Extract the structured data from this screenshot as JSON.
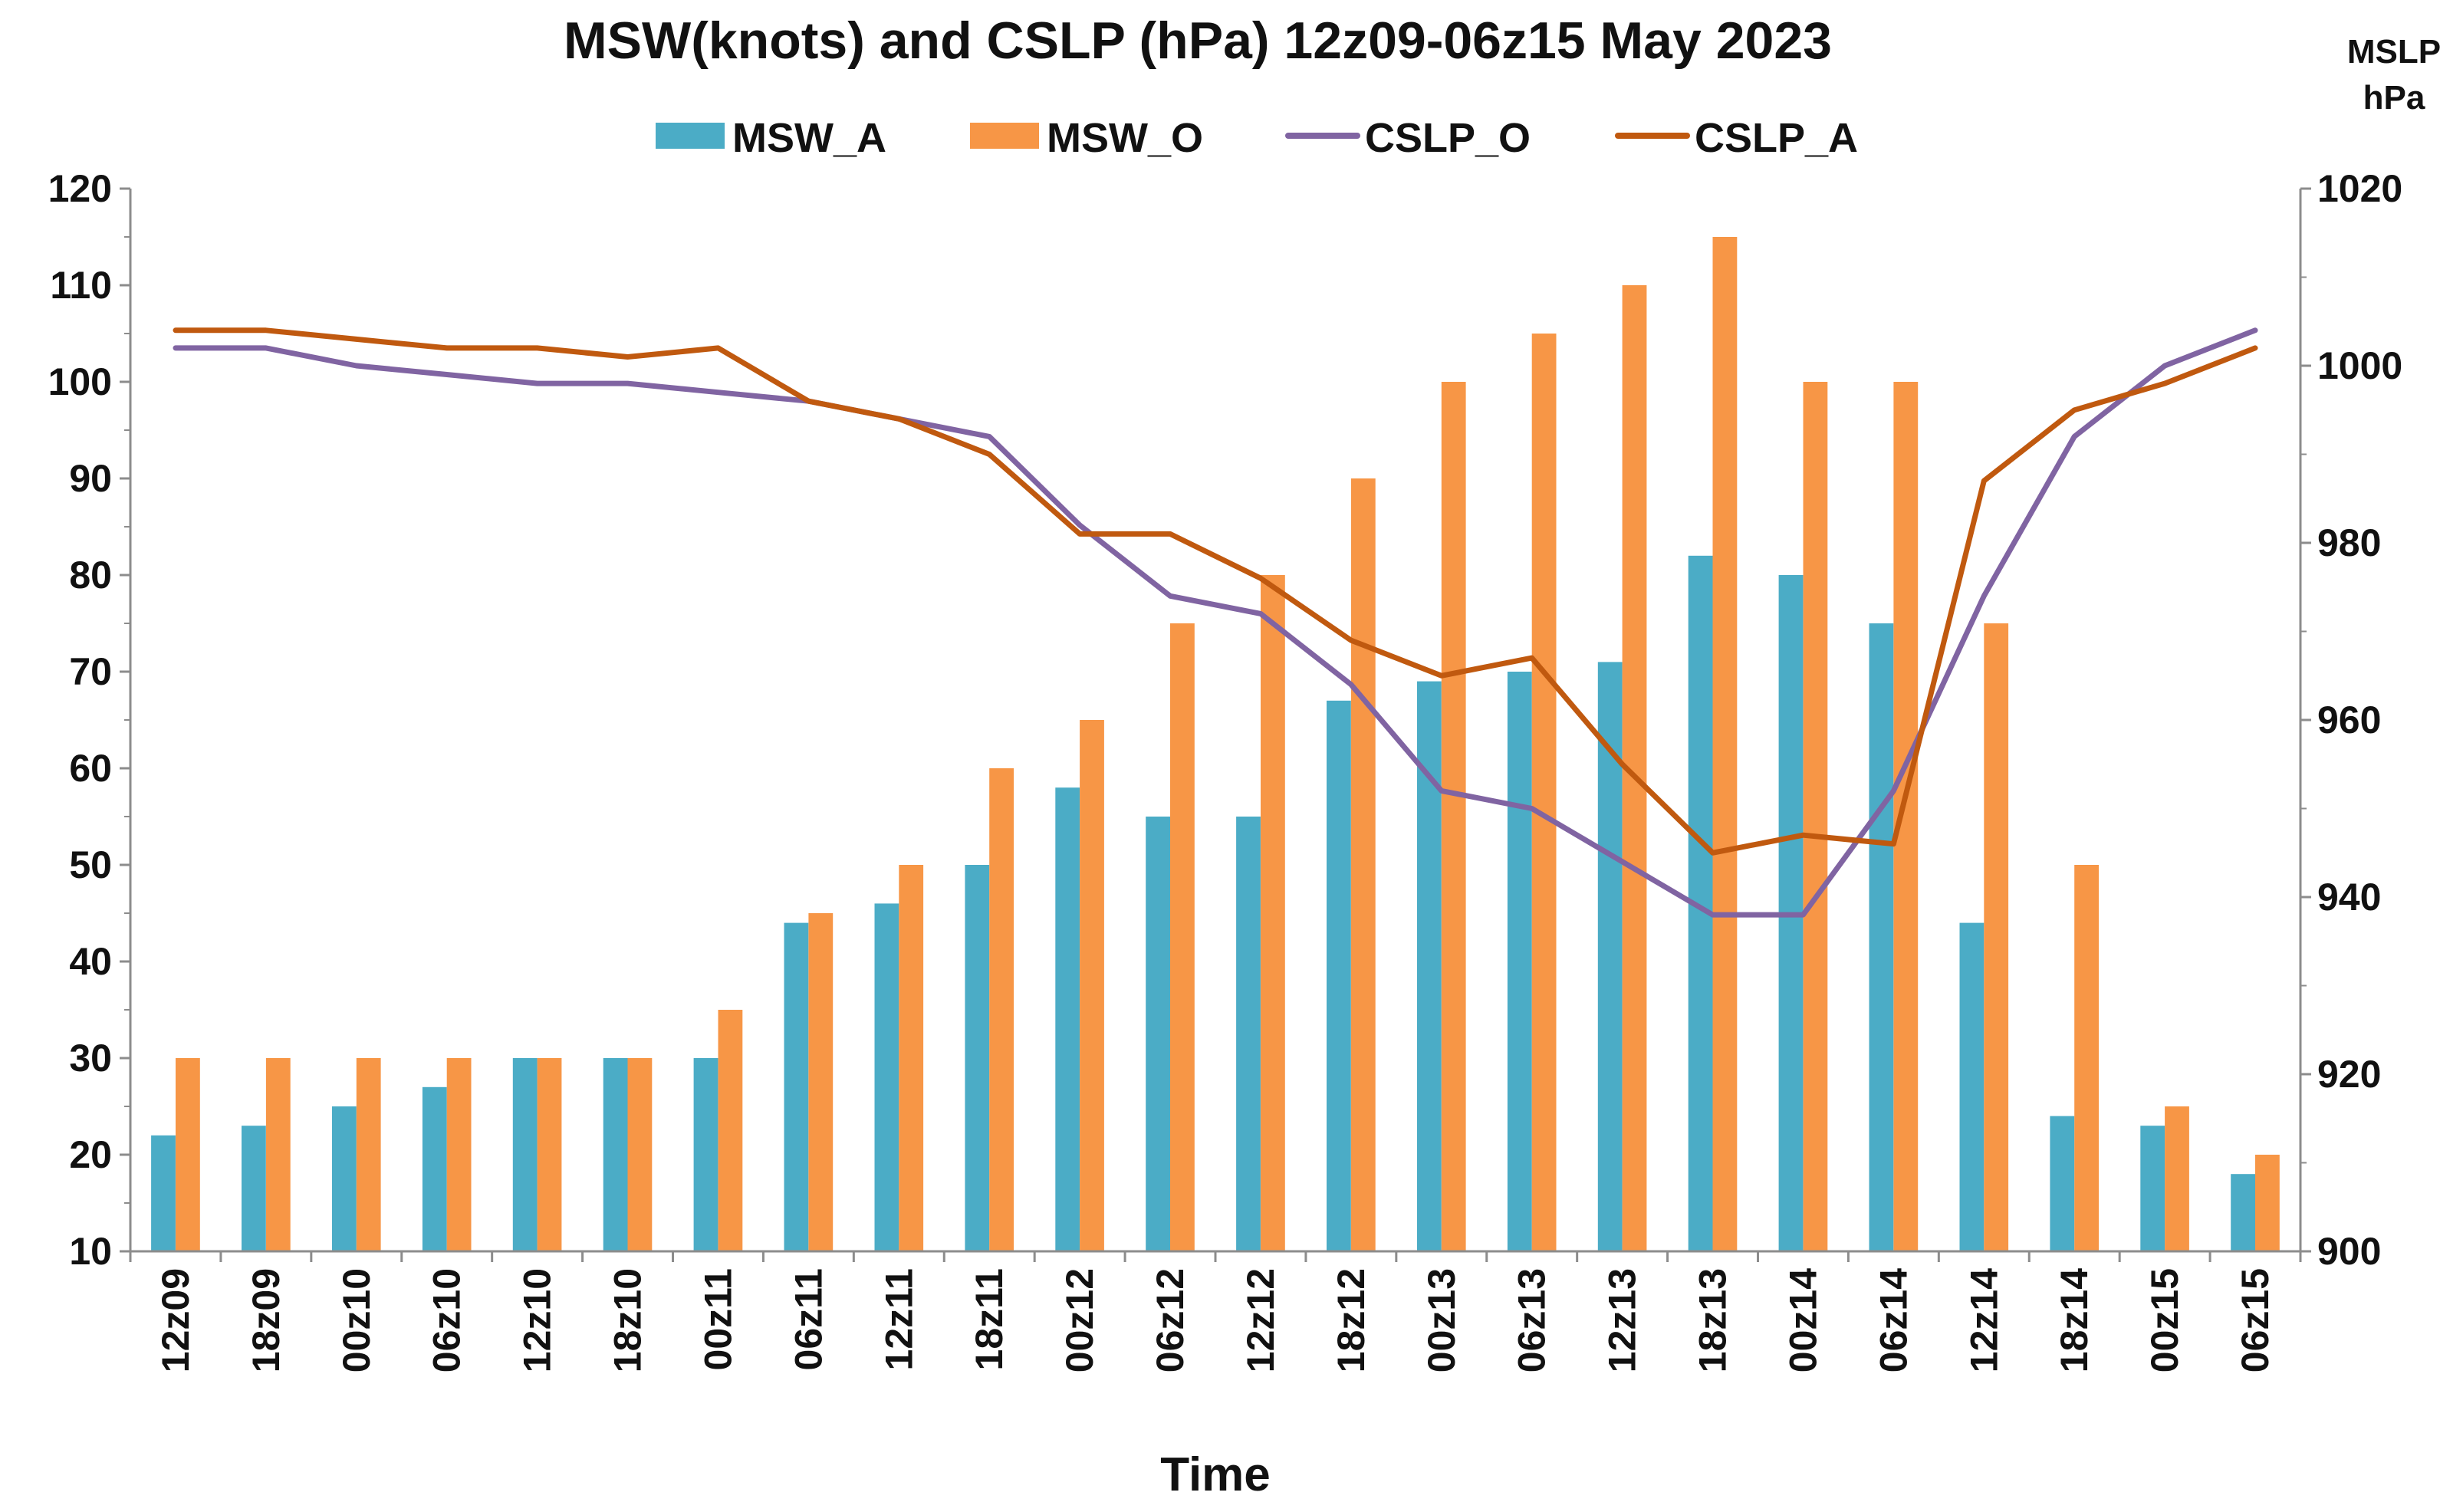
{
  "chart_data": {
    "type": "bar",
    "title": "MSW(knots) and CSLP (hPa) 12z09-06z15 May 2023",
    "xlabel": "Time",
    "ylabel": "",
    "y2label_line1": "MSLP",
    "y2label_line2": "hPa",
    "ylim": [
      10,
      120
    ],
    "yticks": [
      10,
      20,
      30,
      40,
      50,
      60,
      70,
      80,
      90,
      100,
      110,
      120
    ],
    "y2lim": [
      900,
      1020
    ],
    "y2ticks": [
      900,
      920,
      940,
      960,
      980,
      1000,
      1020
    ],
    "grid": false,
    "legend_position": "top",
    "categories": [
      "12z09",
      "18z09",
      "00z10",
      "06z10",
      "12z10",
      "18z10",
      "00z11",
      "06z11",
      "12z11",
      "18z11",
      "00z12",
      "06z12",
      "12z12",
      "18z12",
      "00z13",
      "06z13",
      "12z13",
      "18z13",
      "00z14",
      "06z14",
      "12z14",
      "18z14",
      "00z15",
      "06z15"
    ],
    "series": [
      {
        "name": "MSW_A",
        "kind": "bar",
        "axis": "left",
        "color": "#4BACC6",
        "values": [
          22,
          23,
          25,
          27,
          30,
          30,
          30,
          44,
          46,
          50,
          58,
          55,
          55,
          67,
          69,
          70,
          71,
          82,
          80,
          75,
          44,
          24,
          23,
          18
        ]
      },
      {
        "name": "MSW_O",
        "kind": "bar",
        "axis": "left",
        "color": "#F79646",
        "values": [
          30,
          30,
          30,
          30,
          30,
          30,
          35,
          45,
          50,
          60,
          65,
          75,
          80,
          90,
          100,
          105,
          110,
          115,
          100,
          100,
          75,
          50,
          25,
          20
        ]
      },
      {
        "name": "CSLP_O",
        "kind": "line",
        "axis": "right",
        "color": "#8064A2",
        "values": [
          1002,
          1002,
          1000,
          999,
          998,
          998,
          997,
          996,
          994,
          992,
          982,
          974,
          972,
          964,
          952,
          950,
          944,
          938,
          938,
          952,
          974,
          992,
          1000,
          1004
        ]
      },
      {
        "name": "CSLP_A",
        "kind": "line",
        "axis": "right",
        "color": "#C0590F",
        "values": [
          1004,
          1004,
          1003,
          1002,
          1002,
          1001,
          1002,
          996,
          994,
          990,
          981,
          981,
          976,
          969,
          965,
          967,
          955,
          945,
          947,
          946,
          987,
          995,
          998,
          1002
        ]
      }
    ]
  }
}
